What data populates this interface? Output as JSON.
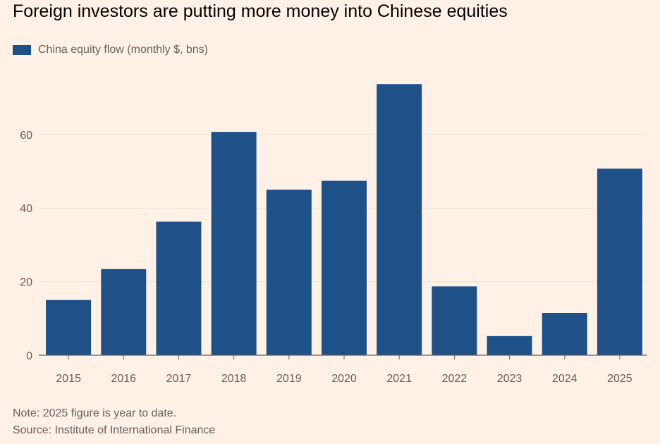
{
  "title": "Foreign investors are putting more money into Chinese equities",
  "legend": {
    "label": "China equity flow (monthly $, bns)",
    "color": "#1f5189"
  },
  "note": "Note: 2025 figure is year to date.",
  "source": "Source: Institute of International Finance",
  "colors": {
    "background": "#fff1e5",
    "bar": "#1f5189",
    "gridline": "#efe3d8",
    "baseline": "#66605c"
  },
  "chart_data": {
    "type": "bar",
    "categories": [
      "2015",
      "2016",
      "2017",
      "2018",
      "2019",
      "2020",
      "2021",
      "2022",
      "2023",
      "2024",
      "2025"
    ],
    "series": [
      {
        "name": "China equity flow (monthly $, bns)",
        "values": [
          15,
          23.4,
          36.3,
          60.7,
          45,
          47.4,
          73.7,
          18.7,
          5.2,
          11.5,
          50.7
        ]
      }
    ],
    "yticks": [
      0,
      20,
      40,
      60
    ],
    "ylim": [
      0,
      80
    ],
    "grid": true,
    "legend_position": "top-left"
  }
}
